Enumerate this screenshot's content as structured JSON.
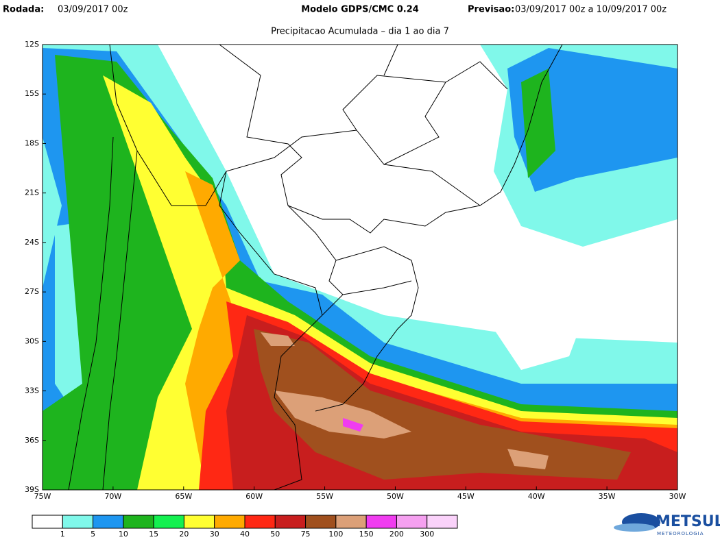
{
  "header": {
    "run_label": "Rodada:",
    "run": "03/09/2017 00z",
    "model": "Modelo GDPS/CMC 0.24",
    "forecast_label": "Previsao:",
    "forecast": "03/09/2017 00z a 10/09/2017 00z"
  },
  "subtitle": "Precipitacao Acumulada – dia 1 ao dia 7",
  "map": {
    "lat_labels": [
      "12S",
      "15S",
      "18S",
      "21S",
      "24S",
      "27S",
      "30S",
      "33S",
      "36S",
      "39S"
    ],
    "lon_labels": [
      "75W",
      "70W",
      "65W",
      "60W",
      "55W",
      "50W",
      "45W",
      "40W",
      "35W",
      "30W"
    ]
  },
  "colorbar": {
    "colors": [
      "#ffffff",
      "#80f8ea",
      "#1e96f0",
      "#1eb41e",
      "#14f050",
      "#ffff32",
      "#ffaa00",
      "#ff2814",
      "#c81e1e",
      "#a0501e",
      "#dca078",
      "#f03cf0",
      "#f5a0f0",
      "#fad2fa"
    ],
    "labels": [
      "1",
      "5",
      "10",
      "15",
      "20",
      "30",
      "40",
      "50",
      "75",
      "100",
      "150",
      "200",
      "300"
    ]
  },
  "logo": {
    "name": "METSUL",
    "tagline": "METEOROLOGIA"
  }
}
